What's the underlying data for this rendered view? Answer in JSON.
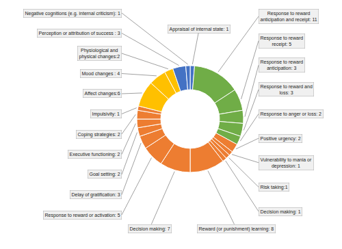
{
  "chart_data": {
    "type": "donut",
    "categories": [
      "Appraisal of internal state: 1",
      "Response to reward\nanticipation and receipt: 11",
      "Response to reward\nreceipt: 5",
      "Response to reward\nanticipation: 3",
      "Response to reward and\nloss: 3",
      "Response to anger or loss: 2",
      "Positive urgency: 2",
      "Vulnerability to mania or\ndepression: 1",
      "Risk taking:1",
      "Decision making: 1",
      "Reward (or punishment) learning: 8",
      "Decision making: 7",
      "Response to reward or activation: 5",
      "Delay of gratification: 3",
      "Goal setting: 2",
      "Executive functioning: 2",
      "Coping strategies: 2",
      "Impulsivity: 1",
      "Affect changes:6",
      "Mood changes : 4",
      "Physiological and\nphysical changes:2",
      "Perception or attribution of success : 3",
      "Negative cognitions (e.g. internal criticism): 1"
    ],
    "values": [
      1,
      11,
      5,
      3,
      3,
      2,
      2,
      1,
      1,
      1,
      8,
      7,
      5,
      3,
      2,
      2,
      2,
      1,
      6,
      4,
      2,
      3,
      1
    ],
    "colors": [
      "#4472C4",
      "#70AD47",
      "#70AD47",
      "#70AD47",
      "#70AD47",
      "#70AD47",
      "#ED7D31",
      "#ED7D31",
      "#ED7D31",
      "#ED7D31",
      "#ED7D31",
      "#ED7D31",
      "#ED7D31",
      "#ED7D31",
      "#ED7D31",
      "#ED7D31",
      "#ED7D31",
      "#ED7D31",
      "#FFC000",
      "#FFC000",
      "#FFC000",
      "#4472C4",
      "#4472C4"
    ]
  }
}
